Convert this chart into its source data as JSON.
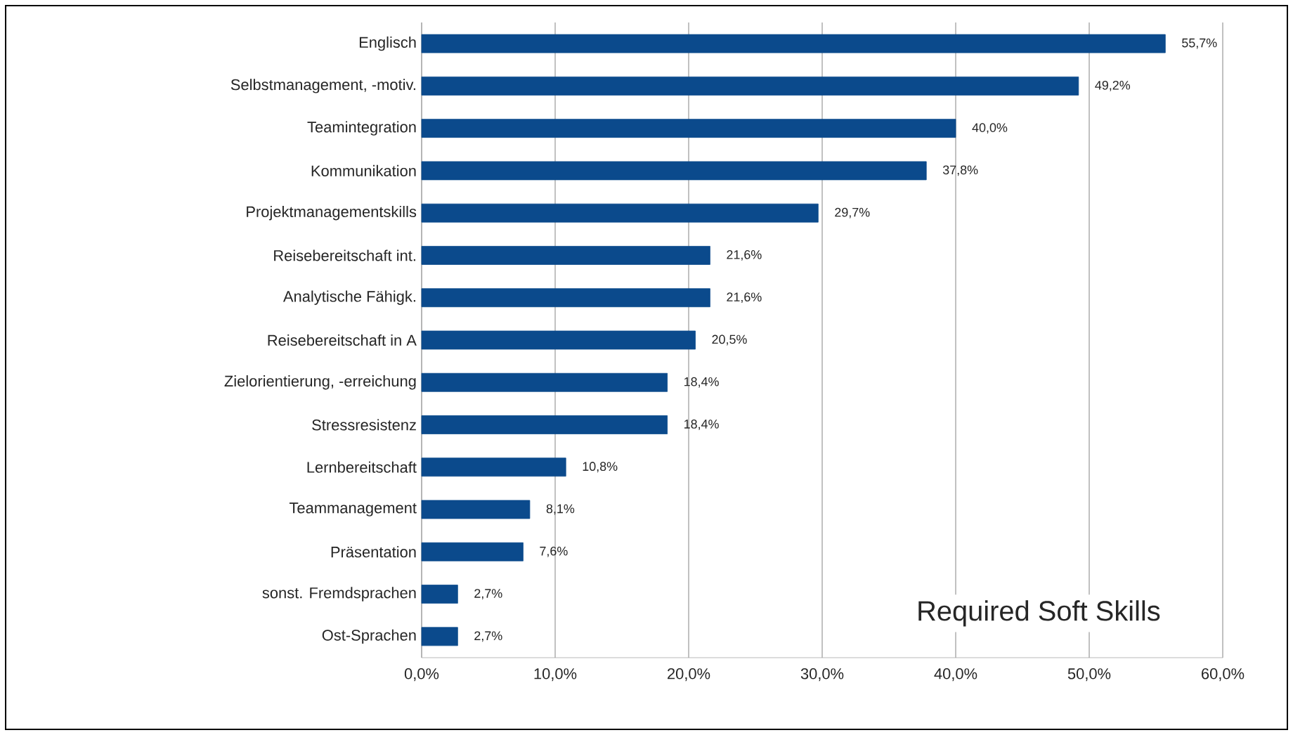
{
  "chart_data": {
    "type": "bar",
    "orientation": "horizontal",
    "title": "Required Soft Skills",
    "categories": [
      "Englisch",
      "Selbstmanagement, -motiv.",
      "Teamintegration",
      "Kommunikation",
      "Projektmanagementskills",
      "Reisebereitschaft int.",
      "Analytische Fähigk.",
      "Reisebereitschaft in A",
      "Zielorientierung, -erreichung",
      "Stressresistenz",
      "Lernbereitschaft",
      "Teammanagement",
      "Präsentation",
      "sonst. Fremdsprachen",
      "Ost-Sprachen"
    ],
    "values": [
      55.7,
      49.2,
      40.0,
      37.8,
      29.7,
      21.6,
      21.6,
      20.5,
      18.4,
      18.4,
      10.8,
      8.1,
      7.6,
      2.7,
      2.7
    ],
    "value_labels": [
      "55,7%",
      "49,2%",
      "40,0%",
      "37,8%",
      "29,7%",
      "21,6%",
      "21,6%",
      "20,5%",
      "18,4%",
      "18,4%",
      "10,8%",
      "8,1%",
      "7,6%",
      "2,7%",
      "2,7%"
    ],
    "color": "#0b4a8c",
    "xlim": [
      0,
      60
    ],
    "xticks": [
      {
        "value": 0,
        "label": "0,0%"
      },
      {
        "value": 10,
        "label": "10,0%"
      },
      {
        "value": 20,
        "label": "20,0%"
      },
      {
        "value": 30,
        "label": "30,0%"
      },
      {
        "value": 40,
        "label": "40,0%"
      },
      {
        "value": 50,
        "label": "50,0%"
      },
      {
        "value": 60,
        "label": "60,0%"
      }
    ],
    "grid": "x"
  }
}
